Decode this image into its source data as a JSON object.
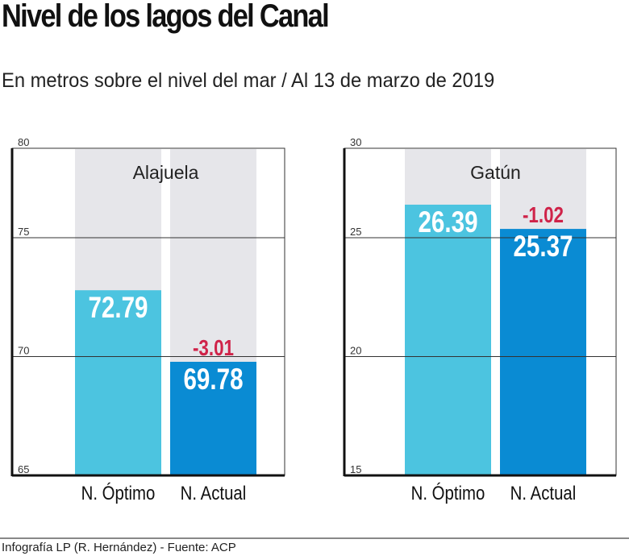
{
  "title": "Nivel de los lagos del Canal",
  "subtitle": "En metros sobre el nivel del mar / Al 13 de marzo de 2019",
  "footer": "Infografía LP (R. Hernández) - Fuente: ACP",
  "colors": {
    "optimo": "#4cc4e0",
    "actual": "#0a8bd3",
    "background_column": "#e6e6ea",
    "difference": "#cf2349"
  },
  "chart_data": [
    {
      "type": "bar",
      "title": "Alajuela",
      "categories": [
        "N. Óptimo",
        "N. Actual"
      ],
      "values": [
        72.79,
        69.78
      ],
      "value_labels": [
        "72.79",
        "69.78"
      ],
      "difference_label": "-3.01",
      "yticks": [
        "65",
        "70",
        "75",
        "80"
      ],
      "ylim": [
        65,
        80
      ],
      "grid": true
    },
    {
      "type": "bar",
      "title": "Gatún",
      "categories": [
        "N. Óptimo",
        "N. Actual"
      ],
      "values": [
        26.39,
        25.37
      ],
      "value_labels": [
        "26.39",
        "25.37"
      ],
      "difference_label": "-1.02",
      "yticks": [
        "15",
        "20",
        "25",
        "30"
      ],
      "ylim": [
        15,
        30
      ],
      "grid": true
    }
  ]
}
